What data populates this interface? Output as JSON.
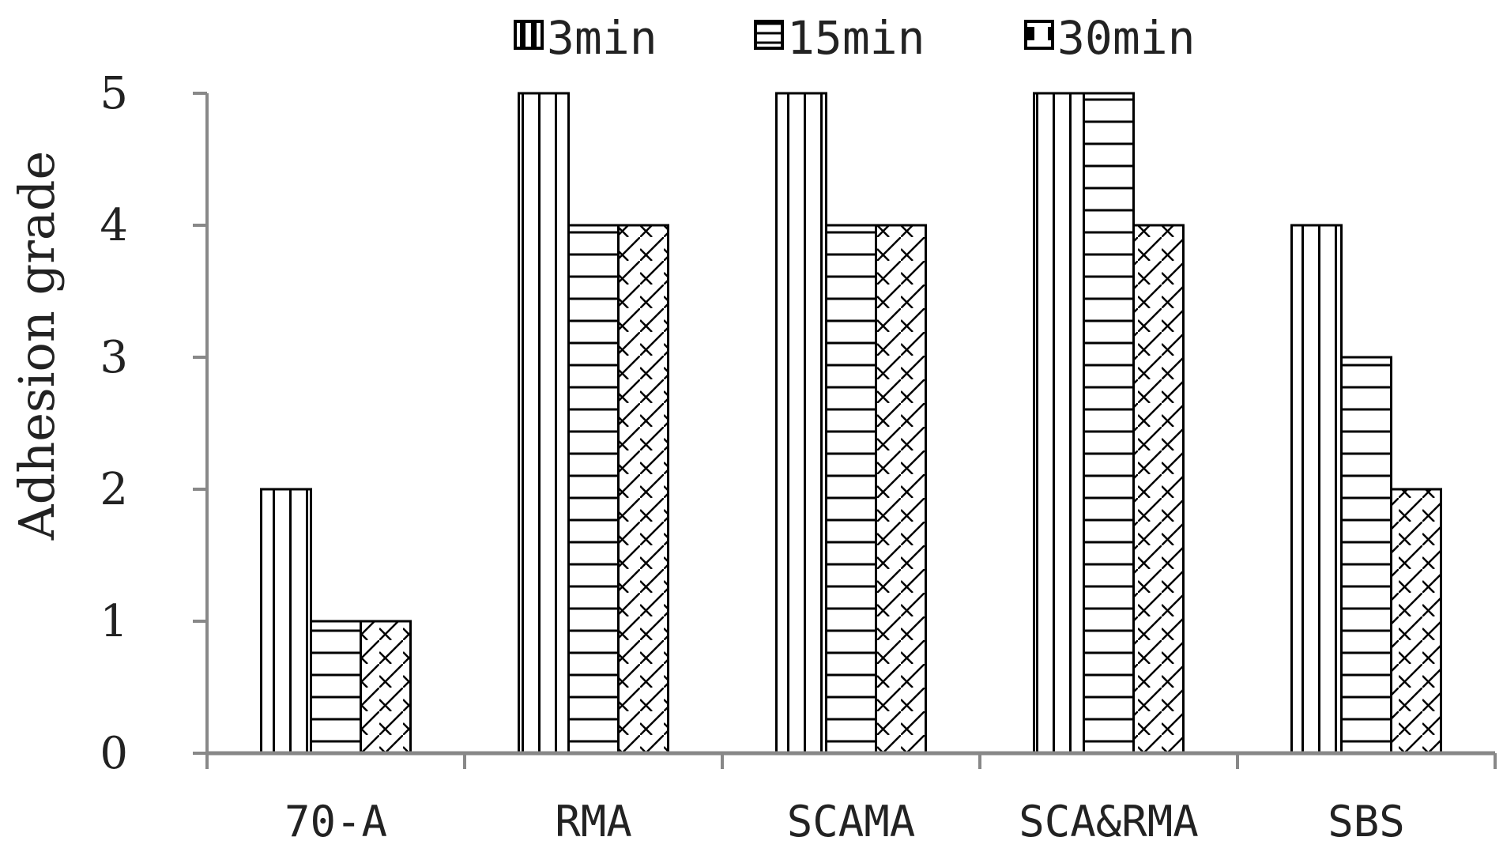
{
  "chart_data": {
    "type": "bar",
    "title": "",
    "xlabel": "",
    "ylabel": "Adhesion grade",
    "ylim": [
      0,
      5
    ],
    "yticks": [
      "0",
      "1",
      "2",
      "3",
      "4",
      "5"
    ],
    "categories": [
      "70-A",
      "RMA",
      "SCAMA",
      "SCA&RMA",
      "SBS"
    ],
    "series": [
      {
        "name": "3min",
        "pattern": "vertical-lines",
        "values": [
          2,
          5,
          5,
          5,
          4
        ]
      },
      {
        "name": "15min",
        "pattern": "horizontal-lines",
        "values": [
          1,
          4,
          4,
          5,
          3
        ]
      },
      {
        "name": "30min",
        "pattern": "zigzag",
        "values": [
          1,
          4,
          4,
          4,
          2
        ]
      }
    ],
    "grid": false,
    "legend": "top",
    "colors": {
      "stroke": "#000000",
      "fill": "#ffffff",
      "axis": "#888888"
    }
  }
}
